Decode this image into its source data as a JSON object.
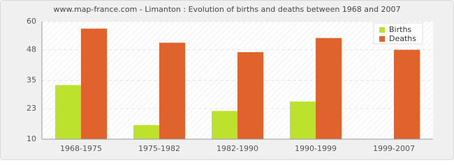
{
  "chart_data": {
    "type": "bar",
    "title": "www.map-france.com - Limanton : Evolution of births and deaths between 1968 and 2007",
    "categories": [
      "1968-1975",
      "1975-1982",
      "1982-1990",
      "1990-1999",
      "1999-2007"
    ],
    "series": [
      {
        "name": "Births",
        "color": "#bde22e",
        "values": [
          33,
          16,
          22,
          26,
          10
        ]
      },
      {
        "name": "Deaths",
        "color": "#e0632e",
        "values": [
          57,
          51,
          47,
          53,
          48
        ]
      }
    ],
    "ylim": [
      10,
      60
    ],
    "yticks": [
      10,
      23,
      35,
      48,
      60
    ],
    "grid": true,
    "legend": "top-right"
  }
}
